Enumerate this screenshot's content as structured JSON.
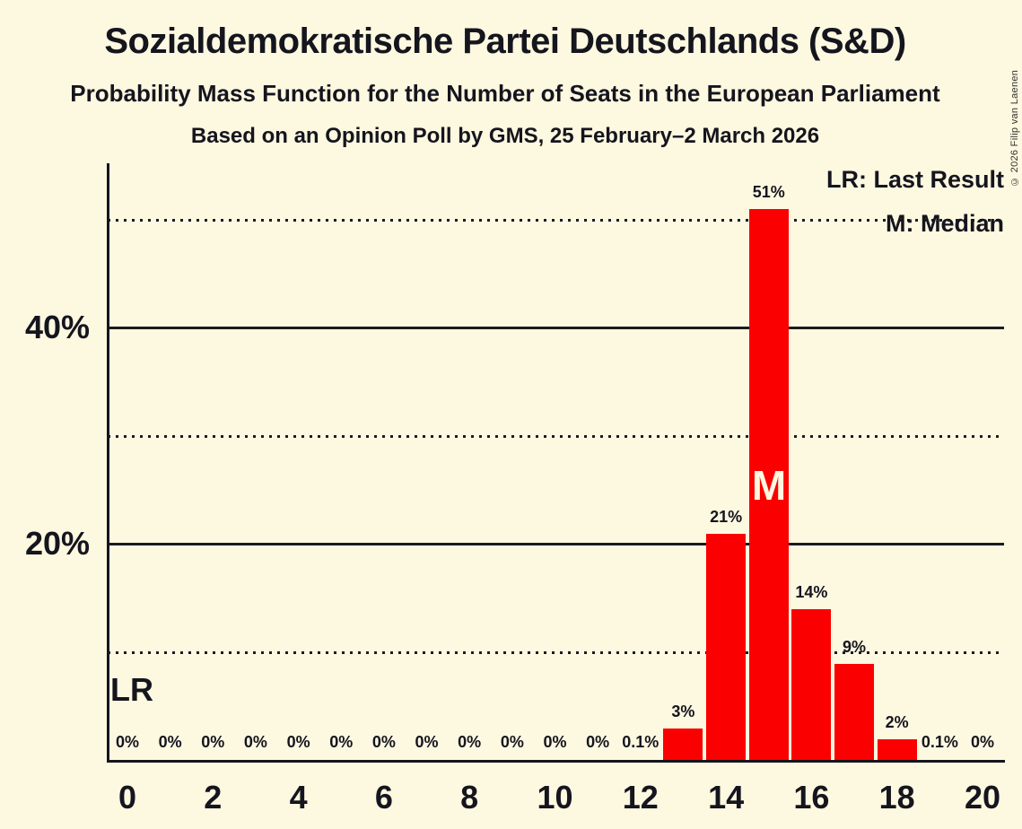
{
  "header": {
    "title": "Sozialdemokratische Partei Deutschlands (S&D)",
    "subtitle": "Probability Mass Function for the Number of Seats in the European Parliament",
    "source": "Based on an Opinion Poll by GMS, 25 February–2 March 2026"
  },
  "copyright": "© 2026 Filip van Laenen",
  "legend": {
    "last_result": "LR: Last Result",
    "median": "M: Median"
  },
  "markers": {
    "last_result": "LR",
    "median": "M"
  },
  "chart_data": {
    "type": "bar",
    "title": "Sozialdemokratische Partei Deutschlands (S&D)",
    "subtitle": "Probability Mass Function for the Number of Seats in the European Parliament",
    "source": "Based on an Opinion Poll by GMS, 25 February–2 March 2026",
    "xlabel": "",
    "ylabel": "",
    "categories": [
      0,
      1,
      2,
      3,
      4,
      5,
      6,
      7,
      8,
      9,
      10,
      11,
      12,
      13,
      14,
      15,
      16,
      17,
      18,
      19,
      20
    ],
    "values": [
      0,
      0,
      0,
      0,
      0,
      0,
      0,
      0,
      0,
      0,
      0,
      0,
      0.1,
      3,
      21,
      51,
      14,
      9,
      2,
      0.1,
      0
    ],
    "bar_labels": [
      "0%",
      "0%",
      "0%",
      "0%",
      "0%",
      "0%",
      "0%",
      "0%",
      "0%",
      "0%",
      "0%",
      "0%",
      "0.1%",
      "3%",
      "21%",
      "51%",
      "14%",
      "9%",
      "2%",
      "0.1%",
      "0%"
    ],
    "x_tick_seats": [
      0,
      2,
      4,
      6,
      8,
      10,
      12,
      14,
      16,
      18,
      20
    ],
    "x_tick_labels": [
      "0",
      "2",
      "4",
      "6",
      "8",
      "10",
      "12",
      "14",
      "16",
      "18",
      "20"
    ],
    "y_ticks": [
      {
        "pct": 20,
        "label": "20%"
      },
      {
        "pct": 40,
        "label": "40%"
      }
    ],
    "gridlines": [
      {
        "pct": 10,
        "style": "dotted"
      },
      {
        "pct": 20,
        "style": "solid"
      },
      {
        "pct": 30,
        "style": "dotted"
      },
      {
        "pct": 40,
        "style": "solid"
      },
      {
        "pct": 50,
        "style": "dotted"
      }
    ],
    "ylim": [
      0,
      55
    ],
    "grid": "horizontal",
    "legend_position": "top-right",
    "median_seat": 15,
    "colors": {
      "background": "#FDF8E0",
      "bar": "#FB0000",
      "text": "#15151E"
    }
  }
}
